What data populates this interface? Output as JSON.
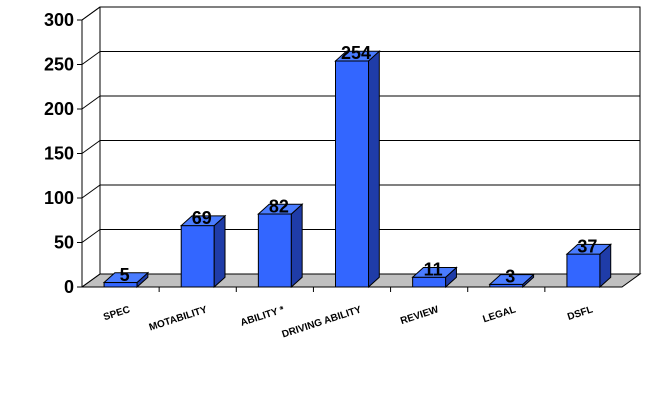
{
  "chart_data": {
    "type": "bar",
    "categories": [
      "SPEC",
      "MOTABILITY",
      "ABILITY *",
      "DRIVING ABILITY",
      "REVIEW",
      "LEGAL",
      "DSFL"
    ],
    "values": [
      5,
      69,
      82,
      254,
      11,
      3,
      37
    ],
    "yticks": [
      "0",
      "50",
      "100",
      "150",
      "200",
      "250",
      "300"
    ],
    "ylim": [
      0,
      300
    ],
    "grid": true,
    "legend": "none",
    "colors": {
      "bar_front": "#3366ff",
      "bar_side": "#1f3ca8",
      "bar_top": "#4a7cff",
      "floor": "#c0c0c0",
      "grid": "#000000"
    }
  }
}
